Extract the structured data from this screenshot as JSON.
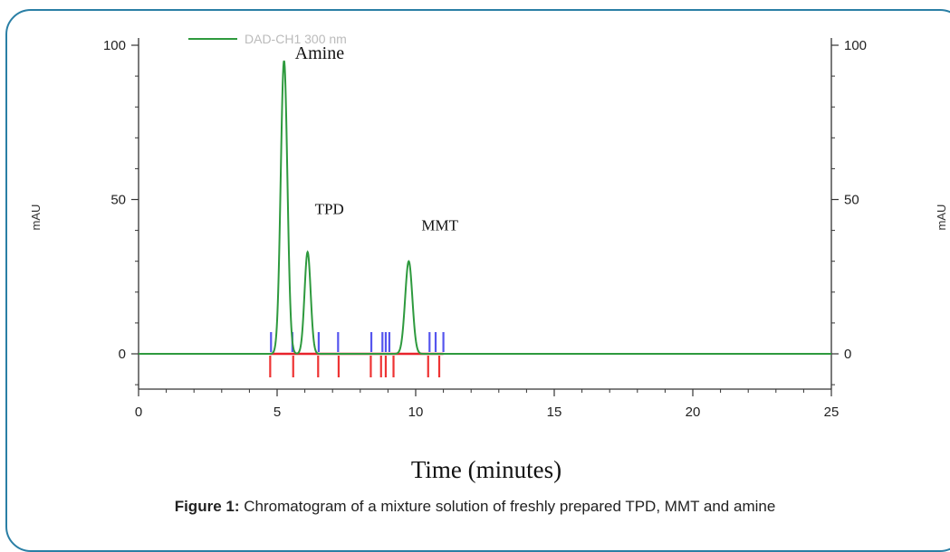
{
  "chart_data": {
    "type": "line",
    "legend": "DAD-CH1  300 nm",
    "ylabel_left": "mAU",
    "ylabel_right": "mAU",
    "xlabel": "Time (minutes)",
    "xlim": [
      0,
      25
    ],
    "ylim": [
      -12,
      102
    ],
    "x_ticks": [
      0,
      5,
      10,
      15,
      20,
      25
    ],
    "y_ticks": [
      0,
      50,
      100
    ],
    "colors": {
      "trace": "#2e9a3e",
      "baseline": "#e8232c",
      "blue_marker": "#5555ee",
      "red_marker": "#ee3333",
      "frame": "#2a7fa5"
    },
    "series": [
      {
        "peaks": [
          {
            "label": "Amine",
            "rt": 5.25,
            "height": 95,
            "width": 0.12
          },
          {
            "label": "TPD",
            "rt": 6.1,
            "height": 33,
            "width": 0.11
          },
          {
            "label": "MMT",
            "rt": 9.75,
            "height": 30,
            "width": 0.13
          }
        ]
      }
    ],
    "blue_markers": [
      4.78,
      5.55,
      6.5,
      7.2,
      8.4,
      8.8,
      8.92,
      9.05,
      10.5,
      10.72,
      11.0
    ],
    "red_markers": [
      4.75,
      5.58,
      6.48,
      7.22,
      8.38,
      8.75,
      8.92,
      9.2,
      10.45,
      10.85
    ],
    "baseline_segment": [
      4.75,
      11.0
    ]
  },
  "caption": {
    "prefix": "Figure 1:",
    "text": " Chromatogram of a mixture solution of freshly prepared TPD, MMT and amine"
  }
}
